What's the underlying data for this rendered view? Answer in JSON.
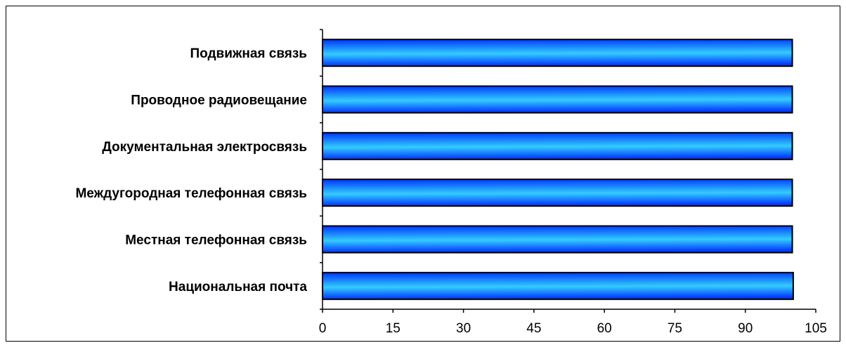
{
  "chart_data": {
    "type": "bar",
    "orientation": "horizontal",
    "categories": [
      "Подвижная связь",
      "Проводное радиовещание",
      "Документальная электросвязь",
      "Междугородная телефонная связь",
      "Местная телефонная связь",
      "Национальная почта"
    ],
    "values": [
      100,
      100,
      100,
      100,
      100,
      100.2
    ],
    "xlim": [
      0,
      105
    ],
    "xticks": [
      "0",
      "15",
      "30",
      "45",
      "60",
      "75",
      "90",
      "105"
    ],
    "title": "",
    "xlabel": "",
    "ylabel": "",
    "grid": false,
    "legend": "none",
    "colors": {
      "bar_dark": "#0033ff",
      "bar_light": "#33ccff",
      "bar_edge": "#000000"
    }
  }
}
